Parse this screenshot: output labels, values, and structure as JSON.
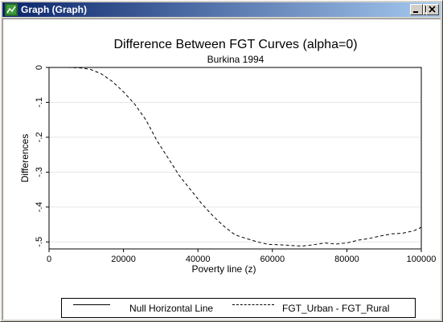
{
  "window": {
    "title": "Graph (Graph)",
    "minimize_icon": "minimize-icon",
    "maximize_icon": "maximize-icon",
    "close_icon": "close-icon",
    "app_icon": "graph-app-icon"
  },
  "chart_data": {
    "type": "line",
    "title": "Difference Between FGT Curves (alpha=0)",
    "subtitle": "Burkina 1994",
    "xlabel": "Poverty line (z)",
    "ylabel": "Differences",
    "xlim": [
      0,
      100000
    ],
    "ylim": [
      -0.52,
      0
    ],
    "x_ticks": [
      0,
      20000,
      40000,
      60000,
      80000,
      100000
    ],
    "x_tick_labels": [
      "0",
      "20000",
      "40000",
      "60000",
      "80000",
      "100000"
    ],
    "y_ticks": [
      0,
      -0.1,
      -0.2,
      -0.3,
      -0.4,
      -0.5
    ],
    "y_tick_labels": [
      "0",
      "-.1",
      "-.2",
      "-.3",
      "-.4",
      "-.5"
    ],
    "grid": true,
    "legend_placement": "bottom",
    "series": [
      {
        "name": "Null Horizontal Line",
        "style": "solid",
        "color": "#000000",
        "x": [
          0,
          100000
        ],
        "y": [
          0,
          0
        ]
      },
      {
        "name": "FGT_Urban - FGT_Rural",
        "style": "dashed",
        "color": "#000000",
        "x": [
          5000,
          8000,
          11000,
          14000,
          17000,
          20000,
          23000,
          26000,
          29000,
          32000,
          35000,
          38000,
          41000,
          44000,
          47000,
          50000,
          53000,
          56000,
          59000,
          62000,
          65000,
          68000,
          71000,
          74000,
          77000,
          80000,
          83000,
          86000,
          89000,
          92000,
          95000,
          98000,
          100000
        ],
        "y": [
          0.0,
          -0.001,
          -0.005,
          -0.018,
          -0.04,
          -0.07,
          -0.105,
          -0.15,
          -0.21,
          -0.26,
          -0.31,
          -0.35,
          -0.39,
          -0.425,
          -0.455,
          -0.48,
          -0.49,
          -0.5,
          -0.507,
          -0.508,
          -0.51,
          -0.512,
          -0.508,
          -0.503,
          -0.506,
          -0.503,
          -0.495,
          -0.49,
          -0.483,
          -0.477,
          -0.475,
          -0.468,
          -0.458
        ]
      }
    ]
  }
}
